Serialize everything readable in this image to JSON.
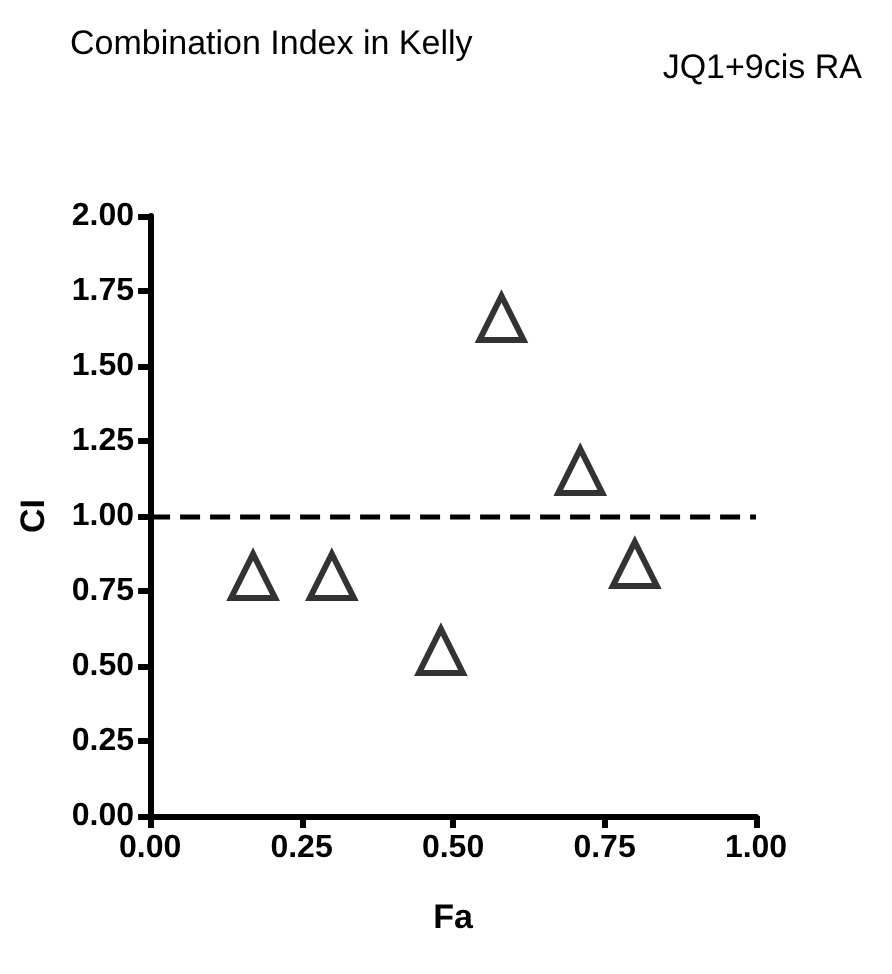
{
  "chart_data": {
    "type": "scatter",
    "title": "Combination Index in Kelly",
    "xlabel": "Fa",
    "ylabel": "CI",
    "x": [
      0.17,
      0.3,
      0.48,
      0.58,
      0.71,
      0.8
    ],
    "series": [
      {
        "name": "JQ1+9cis RA",
        "color": "#000000",
        "values": [
          0.8,
          0.8,
          0.55,
          1.66,
          1.15,
          0.84
        ]
      }
    ],
    "xlim": [
      0,
      1
    ],
    "xticks": [
      {
        "value": 0,
        "label": "0.00"
      },
      0.25,
      {
        "value": 0.5,
        "label": "0.50"
      },
      0.75,
      {
        "value": 1,
        "label": "1.00"
      }
    ],
    "ylim": [
      0,
      2
    ],
    "yticks": [
      {
        "value": 0,
        "label": "0.00"
      },
      0.25,
      {
        "value": 0.5,
        "label": "0.50"
      },
      0.75,
      {
        "value": 1,
        "label": "1.00"
      },
      1.25,
      {
        "value": 1.5,
        "label": "1.50"
      },
      1.75,
      {
        "value": 2,
        "label": "2.00"
      }
    ],
    "ref_lines": [
      {
        "axis": "y",
        "value": 1,
        "line_style": "dashed",
        "color": "#000000"
      }
    ],
    "marker": "triangle",
    "legend": "top right",
    "grid": false
  }
}
